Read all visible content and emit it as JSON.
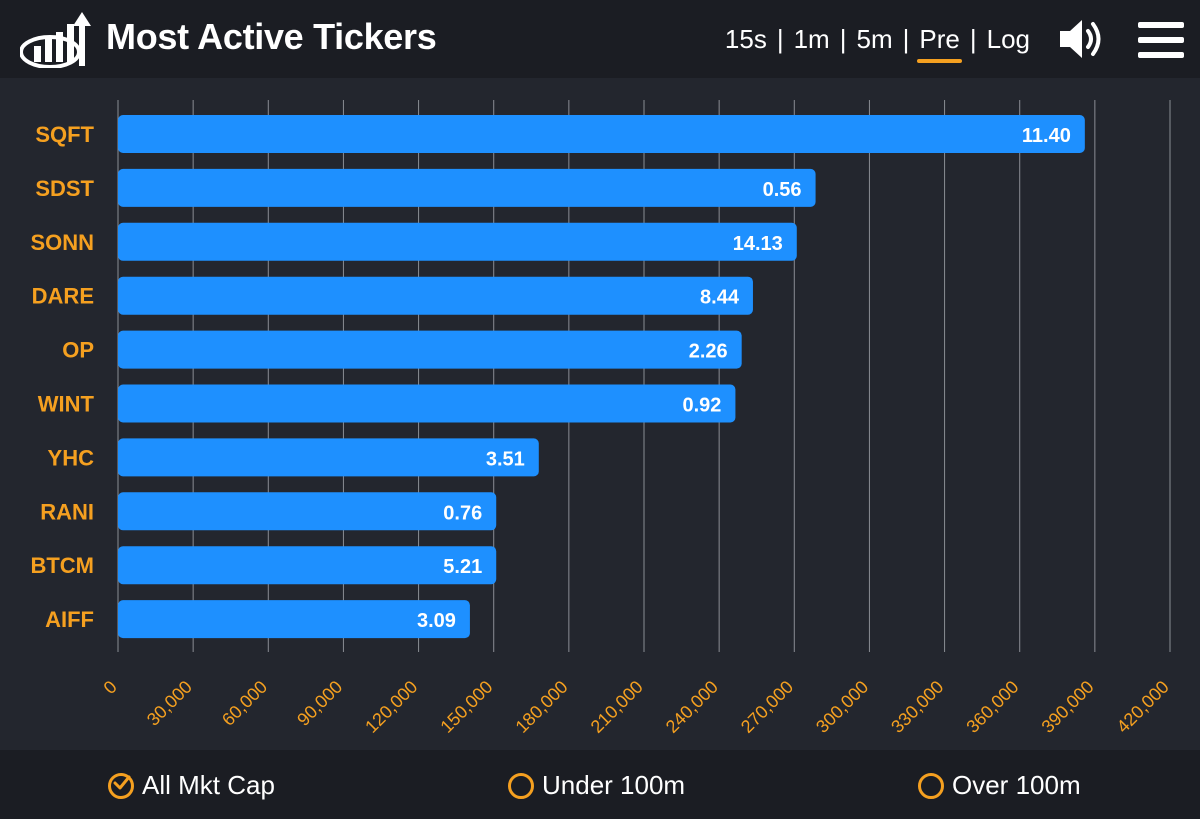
{
  "header": {
    "title": "Most Active Tickers",
    "ranges": [
      {
        "label": "15s",
        "active": false
      },
      {
        "label": "1m",
        "active": false
      },
      {
        "label": "5m",
        "active": false
      },
      {
        "label": "Pre",
        "active": true
      },
      {
        "label": "Log",
        "active": false
      }
    ],
    "separator": "|",
    "sound_icon": "speaker-icon",
    "menu_icon": "hamburger-menu-icon"
  },
  "colors": {
    "bar": "#1e90ff",
    "label": "#f5a020",
    "accent": "#f5a020",
    "background": "#23262e",
    "header_bg": "#1b1d23"
  },
  "chart_data": {
    "type": "bar",
    "orientation": "horizontal",
    "categories": [
      "SQFT",
      "SDST",
      "SONN",
      "DARE",
      "OP",
      "WINT",
      "YHC",
      "RANI",
      "BTCM",
      "AIFF"
    ],
    "values": [
      386000,
      278500,
      271000,
      253500,
      249000,
      246500,
      168000,
      151000,
      151000,
      140500
    ],
    "bar_labels": [
      "11.40",
      "0.56",
      "14.13",
      "8.44",
      "2.26",
      "0.92",
      "3.51",
      "0.76",
      "5.21",
      "3.09"
    ],
    "xlim": [
      0,
      420000
    ],
    "x_ticks": [
      0,
      30000,
      60000,
      90000,
      120000,
      150000,
      180000,
      210000,
      240000,
      270000,
      300000,
      330000,
      360000,
      390000,
      420000
    ],
    "x_tick_labels": [
      "0",
      "30,000",
      "60,000",
      "90,000",
      "120,000",
      "150,000",
      "180,000",
      "210,000",
      "240,000",
      "270,000",
      "300,000",
      "330,000",
      "360,000",
      "390,000",
      "420,000"
    ],
    "grid": true,
    "title": "",
    "xlabel": "",
    "ylabel": ""
  },
  "footer": {
    "filters": [
      {
        "label": "All Mkt Cap",
        "checked": true
      },
      {
        "label": "Under 100m",
        "checked": false
      },
      {
        "label": "Over 100m",
        "checked": false
      }
    ]
  }
}
